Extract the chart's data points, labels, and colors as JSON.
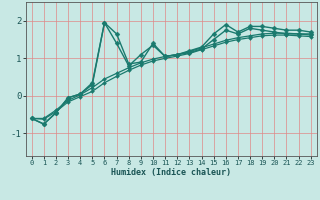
{
  "xlabel": "Humidex (Indice chaleur)",
  "bg_color": "#c8e8e4",
  "grid_color": "#e08888",
  "line_color": "#1a7a6e",
  "xlim": [
    -0.5,
    23.5
  ],
  "ylim": [
    -1.6,
    2.5
  ],
  "xticks": [
    0,
    1,
    2,
    3,
    4,
    5,
    6,
    7,
    8,
    9,
    10,
    11,
    12,
    13,
    14,
    15,
    16,
    17,
    18,
    19,
    20,
    21,
    22,
    23
  ],
  "yticks": [
    -1,
    0,
    1,
    2
  ],
  "lines": [
    {
      "x": [
        0,
        1,
        2,
        3,
        4,
        5,
        6,
        7,
        8,
        9,
        10,
        11,
        12,
        13,
        14,
        15,
        16,
        17,
        18,
        19,
        20,
        21,
        22,
        23
      ],
      "y": [
        -0.6,
        -0.75,
        -0.45,
        -0.05,
        0.05,
        0.35,
        1.95,
        1.65,
        0.85,
        0.9,
        1.4,
        1.05,
        1.1,
        1.2,
        1.3,
        1.65,
        1.9,
        1.7,
        1.85,
        1.85,
        1.8,
        1.75,
        1.75,
        1.7
      ],
      "lw": 1.0,
      "ms": 2.5
    },
    {
      "x": [
        0,
        1,
        2,
        3,
        4,
        5,
        6,
        7,
        8,
        9,
        10,
        11,
        12,
        13,
        14,
        15,
        16,
        17,
        18,
        19,
        20,
        21,
        22,
        23
      ],
      "y": [
        -0.6,
        -0.75,
        -0.45,
        -0.05,
        0.05,
        0.3,
        1.95,
        1.4,
        0.8,
        1.1,
        1.35,
        1.05,
        1.1,
        1.15,
        1.25,
        1.5,
        1.75,
        1.65,
        1.8,
        1.75,
        1.7,
        1.65,
        1.65,
        1.65
      ],
      "lw": 1.0,
      "ms": 2.5
    },
    {
      "x": [
        0,
        1,
        2,
        3,
        4,
        5,
        6,
        7,
        8,
        9,
        10,
        11,
        12,
        13,
        14,
        15,
        16,
        17,
        18,
        19,
        20,
        21,
        22,
        23
      ],
      "y": [
        -0.6,
        -0.6,
        -0.38,
        -0.12,
        0.03,
        0.22,
        0.45,
        0.6,
        0.75,
        0.88,
        0.98,
        1.05,
        1.1,
        1.18,
        1.28,
        1.38,
        1.48,
        1.55,
        1.6,
        1.65,
        1.67,
        1.67,
        1.65,
        1.62
      ],
      "lw": 0.9,
      "ms": 2.0
    },
    {
      "x": [
        0,
        1,
        2,
        3,
        4,
        5,
        6,
        7,
        8,
        9,
        10,
        11,
        12,
        13,
        14,
        15,
        16,
        17,
        18,
        19,
        20,
        21,
        22,
        23
      ],
      "y": [
        -0.6,
        -0.62,
        -0.42,
        -0.16,
        -0.02,
        0.12,
        0.35,
        0.52,
        0.68,
        0.82,
        0.93,
        1.0,
        1.06,
        1.13,
        1.23,
        1.33,
        1.43,
        1.5,
        1.55,
        1.6,
        1.62,
        1.62,
        1.6,
        1.58
      ],
      "lw": 0.9,
      "ms": 2.0
    }
  ]
}
